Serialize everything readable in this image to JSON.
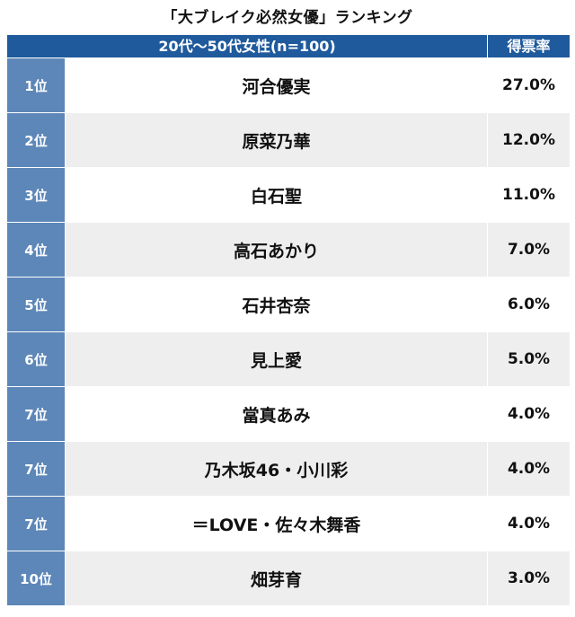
{
  "title": "「大ブレイク必然女優」ランキング",
  "colors": {
    "header_bg": "#1f5a9c",
    "rank_bg": "#5d87b8",
    "row_alt_bg": "#eeeeee"
  },
  "chart_data": {
    "type": "table",
    "title": "「大ブレイク必然女優」ランキング",
    "header": {
      "group": "20代〜50代女性(n=100)",
      "value": "得票率"
    },
    "rows": [
      {
        "rank": "1位",
        "name": "河合優実",
        "value": "27.0%"
      },
      {
        "rank": "2位",
        "name": "原菜乃華",
        "value": "12.0%"
      },
      {
        "rank": "3位",
        "name": "白石聖",
        "value": "11.0%"
      },
      {
        "rank": "4位",
        "name": "高石あかり",
        "value": "7.0%"
      },
      {
        "rank": "5位",
        "name": "石井杏奈",
        "value": "6.0%"
      },
      {
        "rank": "6位",
        "name": "見上愛",
        "value": "5.0%"
      },
      {
        "rank": "7位",
        "name": "當真あみ",
        "value": "4.0%"
      },
      {
        "rank": "7位",
        "name": "乃木坂46・小川彩",
        "value": "4.0%"
      },
      {
        "rank": "7位",
        "name": "＝LOVE・佐々木舞香",
        "value": "4.0%"
      },
      {
        "rank": "10位",
        "name": "畑芽育",
        "value": "3.0%"
      }
    ]
  }
}
